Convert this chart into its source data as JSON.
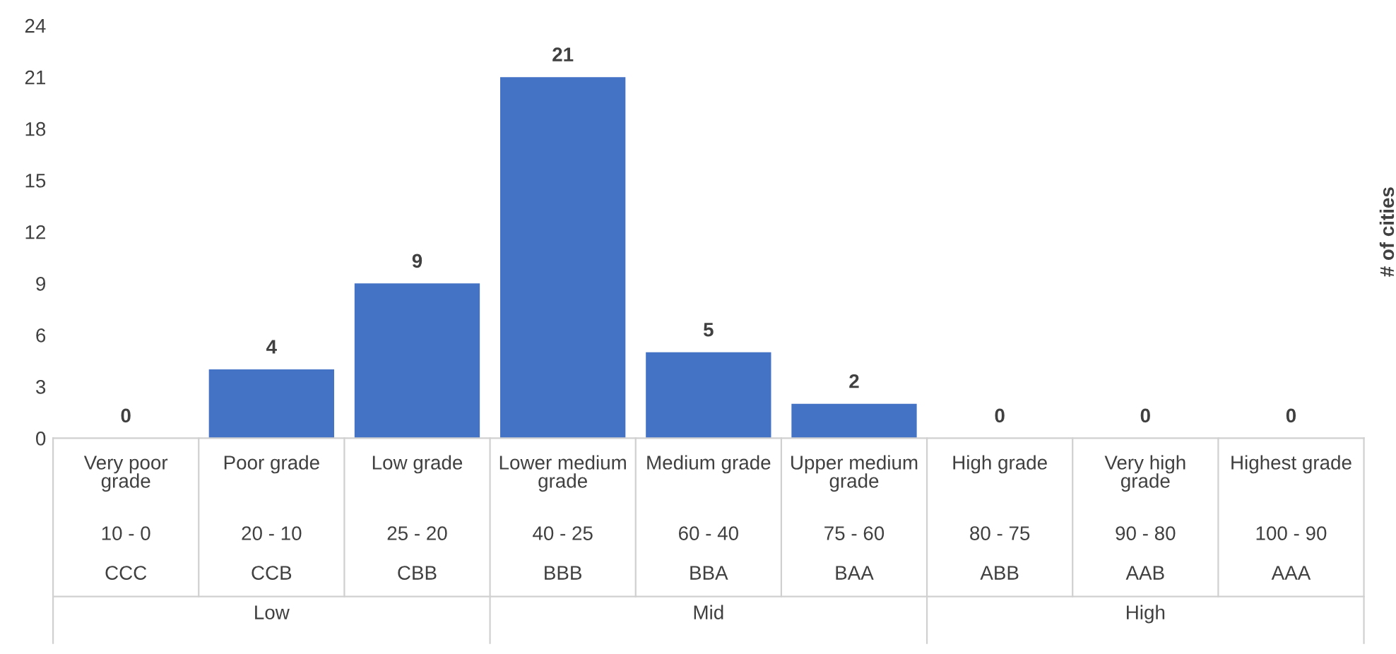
{
  "chart_data": {
    "type": "bar",
    "categories": [
      "Very poor grade\n10 - 0\nCCC",
      "Poor grade\n20 - 10\nCCB",
      "Low grade\n25 - 20\nCBB",
      "Lower medium grade\n40 - 25\nBBB",
      "Medium grade\n60 - 40\nBBA",
      "Upper medium grade\n75 - 60\nBAA",
      "High grade\n80 - 75\nABB",
      "Very high grade\n90 - 80\nAAB",
      "Highest grade\n100 - 90\nAAA"
    ],
    "values": [
      0,
      4,
      9,
      21,
      5,
      2,
      0,
      0,
      0
    ],
    "color": "#4472c4",
    "ylabel": "# of cities",
    "ylim": [
      0,
      24
    ],
    "yticks": [
      0,
      3,
      6,
      9,
      12,
      15,
      18,
      21,
      24
    ],
    "annotations": [
      "Low",
      "Mid",
      "High"
    ],
    "data_labels": true,
    "grid": false,
    "legend": false
  }
}
